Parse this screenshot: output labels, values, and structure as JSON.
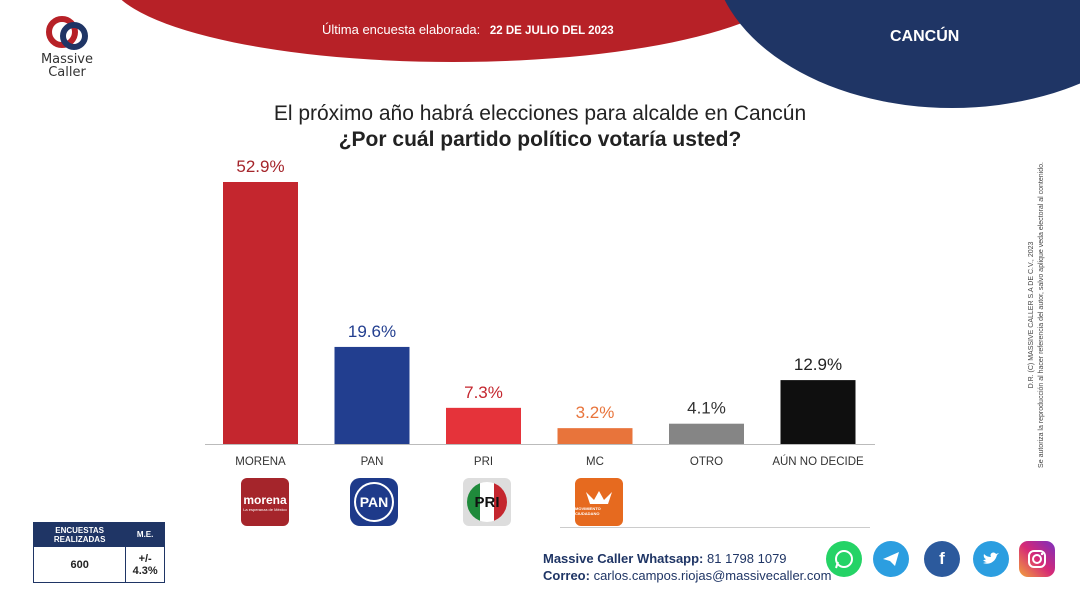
{
  "header": {
    "label": "Última encuesta elaborada:",
    "date": "22 DE JULIO DEL 2023",
    "city": "CANCÚN"
  },
  "logo": {
    "line1": "Massive",
    "line2": "Caller"
  },
  "title": "El próximo año habrá elecciones para alcalde en Cancún",
  "subtitle": "¿Por cuál partido político votaría usted?",
  "chart_data": {
    "type": "bar",
    "title": "¿Por cuál partido político votaría usted?",
    "categories": [
      "MORENA",
      "PAN",
      "PRI",
      "MC",
      "OTRO",
      "AÚN NO DECIDE"
    ],
    "values": [
      52.9,
      19.6,
      7.3,
      3.2,
      4.1,
      12.9
    ],
    "value_labels": [
      "52.9%",
      "19.6%",
      "7.3%",
      "3.2%",
      "4.1%",
      "12.9%"
    ],
    "colors": [
      "#c4262e",
      "#223e8f",
      "#e5333a",
      "#e8743b",
      "#858585",
      "#0f0f0f"
    ],
    "label_colors": [
      "#a5252b",
      "#223e8f",
      "#c4262e",
      "#e8743b",
      "#333333",
      "#222222"
    ],
    "ylim": [
      0,
      52.9
    ],
    "xlabel": "",
    "ylabel": ""
  },
  "party_logos": {
    "morena": {
      "text": "morena",
      "sub": "La esperanza de México"
    },
    "pan": {
      "text": "PAN"
    },
    "pri": {
      "text": "PRI",
      "colors": [
        "#1f8a3b",
        "#ffffff",
        "#c4262e"
      ]
    },
    "mc": {
      "sub": "MOVIMIENTO CIUDADANO"
    }
  },
  "stats": {
    "col1_header": "ENCUESTAS REALIZADAS",
    "col2_header": "M.E.",
    "col1_value": "600",
    "col2_value": "+/- 4.3%"
  },
  "contact": {
    "whatsapp_label": "Massive Caller Whatsapp:",
    "whatsapp_number": "81 1798 1079",
    "email_label": "Correo:",
    "email": "carlos.campos.riojas@massivecaller.com"
  },
  "social_icons": [
    "whatsapp-icon",
    "telegram-icon",
    "facebook-icon",
    "twitter-icon",
    "instagram-icon"
  ],
  "copyright": {
    "line1": "D.R. (C) MASSIVE CALLER S.A DE C.V., 2023",
    "line2": "Se autoriza la reproducción al hacer referencia del autor, salvo aplique veda electoral al contenido."
  }
}
